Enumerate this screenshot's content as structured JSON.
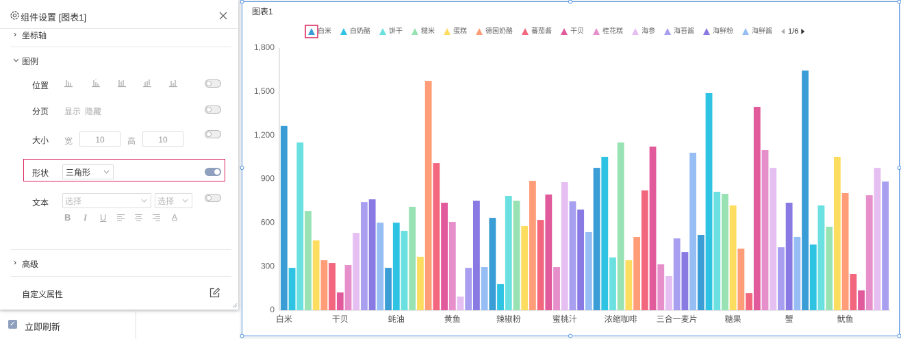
{
  "panel": {
    "title": "组件设置 [图表1]",
    "sections": {
      "axis": "坐标轴",
      "legend": "图例",
      "advanced": "高级",
      "custom": "自定义属性"
    },
    "rows": {
      "position": "位置",
      "paging": "分页",
      "paging_show": "显示",
      "paging_hide": "隐藏",
      "size": "大小",
      "width_label": "宽",
      "width_value": "10",
      "height_label": "高",
      "height_value": "10",
      "shape": "形状",
      "shape_value": "三角形",
      "text": "文本",
      "text_select1": "选择",
      "text_select2": "选择"
    },
    "format_buttons": [
      "B",
      "I",
      "U",
      "A"
    ],
    "refresh": "立即刷新"
  },
  "chart_data": {
    "type": "bar",
    "title": "图表1",
    "legend": [
      "白米",
      "白奶酪",
      "饼干",
      "糙米",
      "蛋糕",
      "德国奶酪",
      "蕃茄酱",
      "干贝",
      "桂花糕",
      "海参",
      "海苔酱",
      "海鲜粉",
      "海鲜酱"
    ],
    "legend_page": "1/6",
    "colors": [
      "#3b9dd6",
      "#2ec3e2",
      "#6be0e0",
      "#98e2b3",
      "#fddd60",
      "#ff9d78",
      "#f2677e",
      "#e15a9c",
      "#e68fcb",
      "#e6bff2",
      "#a89ff0",
      "#8979e2",
      "#96bef5"
    ],
    "categories": [
      "白米",
      null,
      null,
      null,
      null,
      null,
      null,
      "干贝",
      null,
      null,
      null,
      null,
      null,
      null,
      "蚝油",
      null,
      null,
      null,
      null,
      null,
      null,
      "黄鱼",
      null,
      null,
      null,
      null,
      null,
      null,
      "辣椒粉",
      null,
      null,
      null,
      null,
      null,
      null,
      "蜜桃汁",
      null,
      null,
      null,
      null,
      null,
      null,
      "浓缩咖啡",
      null,
      null,
      null,
      null,
      null,
      null,
      "三合一麦片",
      null,
      null,
      null,
      null,
      null,
      null,
      "糖果",
      null,
      null,
      null,
      null,
      null,
      null,
      "蟹",
      null,
      null,
      null,
      null,
      null,
      null,
      "鱿鱼",
      null,
      null,
      null,
      null,
      null
    ],
    "values": [
      1265,
      291,
      1151,
      681,
      479,
      343,
      324,
      122,
      310,
      531,
      742,
      761,
      601,
      291,
      601,
      545,
      710,
      367,
      1574,
      1010,
      738,
      606,
      94,
      291,
      752,
      296,
      634,
      179,
      785,
      752,
      578,
      888,
      620,
      794,
      296,
      879,
      747,
      691,
      536,
      977,
      1053,
      362,
      1151,
      343,
      503,
      822,
      1123,
      315,
      235,
      493,
      399,
      1081,
      517,
      1490,
      813,
      799,
      719,
      423,
      117,
      1396,
      1100,
      977,
      432,
      738,
      503,
      1645,
      451,
      719,
      573,
      1053,
      804,
      249,
      136,
      789,
      977,
      883
    ],
    "ylim": [
      0,
      1800
    ],
    "yticks": [
      0,
      {
        "value": 300,
        "label": "300"
      },
      {
        "value": 600,
        "label": "600"
      },
      {
        "value": 900,
        "label": "900"
      },
      {
        "value": 1200,
        "label": "1,200"
      },
      {
        "value": 1500,
        "label": "1,500"
      },
      {
        "value": 1800,
        "label": "1,800"
      }
    ],
    "grid": false
  }
}
